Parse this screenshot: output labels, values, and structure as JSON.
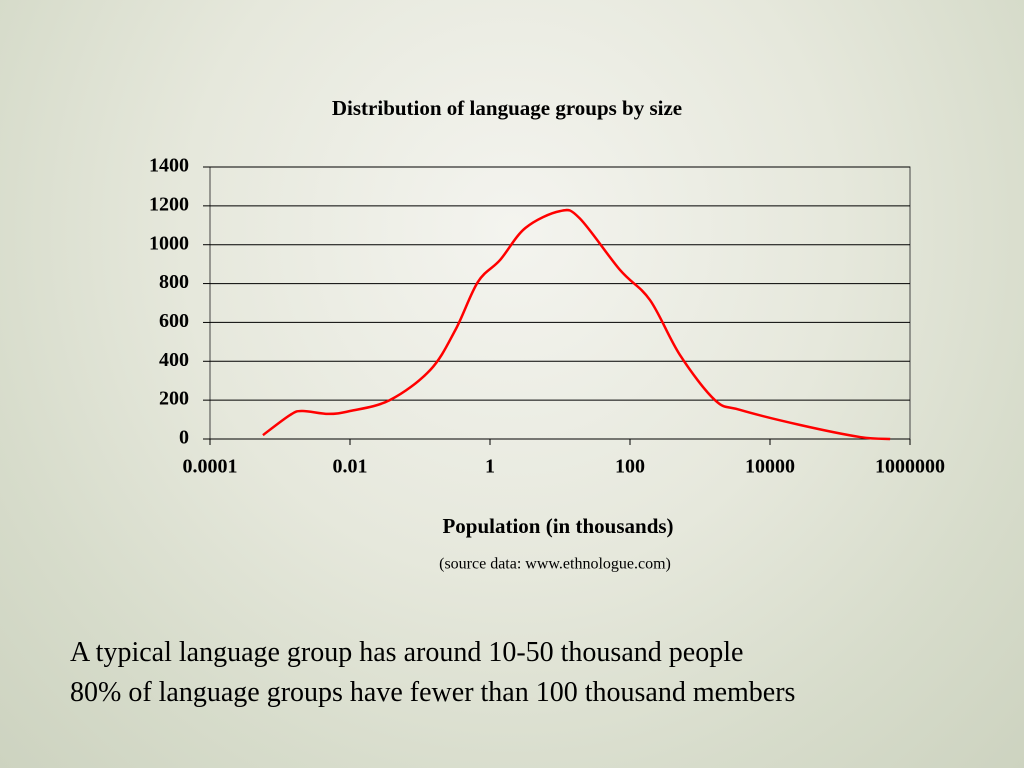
{
  "chart_data": {
    "type": "line",
    "title": "Distribution of language groups by size",
    "xlabel": "Population (in thousands)",
    "note": "(source data: www.ethnologue.com)",
    "xscale": "log",
    "xlim": [
      0.0001,
      1000000
    ],
    "xticks": [
      0.0001,
      0.01,
      1,
      100,
      10000,
      1000000
    ],
    "ylim": [
      0,
      1400
    ],
    "yticks": [
      0,
      200,
      400,
      600,
      800,
      1000,
      1200,
      1400
    ],
    "grid": true,
    "x": [
      0.00057,
      0.0014,
      0.0021,
      0.0049,
      0.01,
      0.037,
      0.14,
      0.32,
      0.67,
      1.39,
      3.2,
      10,
      19,
      72,
      193,
      518,
      1640,
      3700,
      27000,
      194000,
      520000
    ],
    "series": [
      {
        "color": "#ff0000",
        "values": [
          20,
          124,
          144,
          129,
          144,
          200,
          355,
          561,
          808,
          921,
          1086,
          1173,
          1137,
          870,
          715,
          432,
          200,
          150,
          72,
          10,
          0
        ]
      }
    ]
  },
  "slide_text": [
    "A typical language group has around 10-50 thousand people",
    "80% of language groups have fewer than 100 thousand members"
  ]
}
